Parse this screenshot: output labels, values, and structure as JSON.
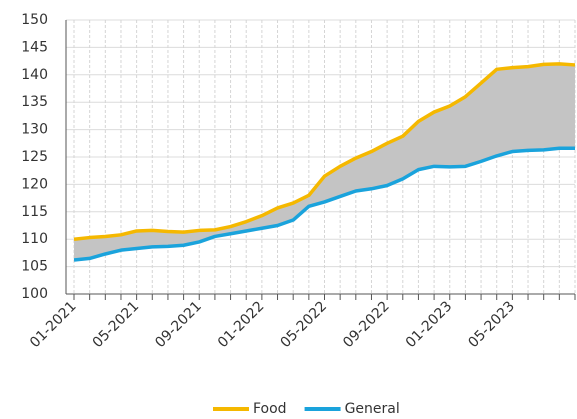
{
  "chart_data": {
    "type": "line",
    "categories": [
      "01-2021",
      null,
      null,
      null,
      "05-2021",
      null,
      null,
      null,
      "09-2021",
      null,
      null,
      null,
      "01-2022",
      null,
      null,
      null,
      "05-2022",
      null,
      null,
      null,
      "09-2022",
      null,
      null,
      null,
      "01-2023",
      null,
      null,
      null,
      "05-2023",
      null,
      null,
      null,
      null
    ],
    "series": [
      {
        "name": "Food",
        "color": "#f5b800",
        "values": [
          110,
          110.3,
          110.5,
          110.8,
          111.5,
          111.6,
          111.4,
          111.3,
          111.6,
          111.7,
          112.3,
          113.2,
          114.3,
          115.7,
          116.6,
          118,
          121.5,
          123.3,
          124.8,
          126,
          127.5,
          128.8,
          131.5,
          133.2,
          134.3,
          136,
          138.5,
          141,
          141.3,
          141.5,
          141.9,
          142,
          141.8
        ]
      },
      {
        "name": "General",
        "color": "#1aa3dc",
        "values": [
          106.2,
          106.5,
          107.3,
          108,
          108.3,
          108.6,
          108.7,
          108.9,
          109.5,
          110.5,
          111,
          111.5,
          112,
          112.5,
          113.5,
          116,
          116.8,
          117.8,
          118.8,
          119.2,
          119.8,
          121,
          122.7,
          123.3,
          123.2,
          123.3,
          124.2,
          125.2,
          126,
          126.2,
          126.3,
          126.6,
          126.6
        ]
      }
    ],
    "ylim": [
      100,
      150
    ],
    "yticks": [
      100,
      105,
      110,
      115,
      120,
      125,
      130,
      135,
      140,
      145,
      150
    ],
    "grid": true,
    "fill_between": true,
    "legend": "bottom"
  }
}
